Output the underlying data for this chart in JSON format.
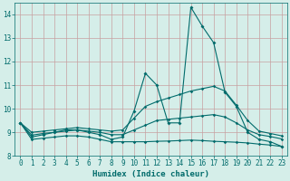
{
  "xlabel": "Humidex (Indice chaleur)",
  "x": [
    0,
    1,
    2,
    3,
    4,
    5,
    6,
    7,
    8,
    9,
    10,
    11,
    12,
    13,
    14,
    15,
    16,
    17,
    18,
    19,
    20,
    21,
    22,
    23
  ],
  "line_main": [
    9.4,
    8.8,
    8.9,
    9.0,
    9.1,
    9.1,
    9.0,
    8.9,
    8.7,
    8.8,
    9.9,
    11.5,
    11.0,
    9.4,
    9.4,
    14.3,
    13.5,
    12.8,
    10.7,
    10.1,
    9.0,
    8.7,
    8.6,
    8.4
  ],
  "line_upper": [
    9.4,
    9.0,
    9.05,
    9.1,
    9.15,
    9.2,
    9.15,
    9.1,
    9.05,
    9.1,
    9.6,
    10.1,
    10.3,
    10.45,
    10.6,
    10.75,
    10.85,
    10.95,
    10.75,
    10.15,
    9.5,
    9.05,
    8.95,
    8.85
  ],
  "line_lower": [
    9.4,
    8.7,
    8.75,
    8.8,
    8.85,
    8.85,
    8.8,
    8.7,
    8.6,
    8.6,
    8.6,
    8.6,
    8.62,
    8.63,
    8.65,
    8.67,
    8.65,
    8.62,
    8.6,
    8.58,
    8.55,
    8.5,
    8.46,
    8.4
  ],
  "line_mid": [
    9.4,
    8.88,
    8.95,
    9.0,
    9.05,
    9.1,
    9.05,
    9.0,
    8.9,
    8.9,
    9.1,
    9.3,
    9.5,
    9.55,
    9.6,
    9.65,
    9.7,
    9.75,
    9.65,
    9.4,
    9.1,
    8.9,
    8.82,
    8.72
  ],
  "bg_color": "#d5eee9",
  "grid_color": "#c8a0a0",
  "line_color": "#006b6b",
  "ylim": [
    8.0,
    14.5
  ],
  "yticks": [
    8,
    9,
    10,
    11,
    12,
    13,
    14
  ],
  "xticks": [
    0,
    1,
    2,
    3,
    4,
    5,
    6,
    7,
    8,
    9,
    10,
    11,
    12,
    13,
    14,
    15,
    16,
    17,
    18,
    19,
    20,
    21,
    22,
    23
  ],
  "tick_fontsize": 5.5,
  "xlabel_fontsize": 6.5
}
